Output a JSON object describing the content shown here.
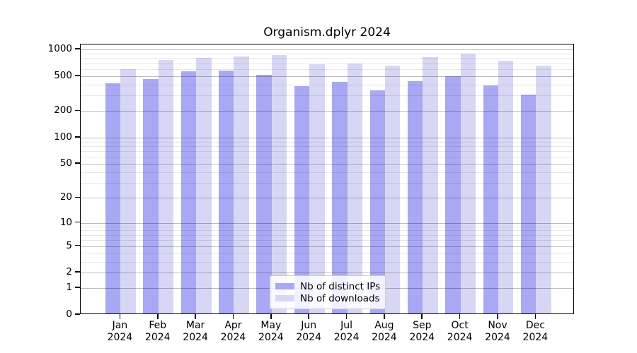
{
  "chart_data": {
    "type": "bar",
    "title": "Organism.dplyr 2024",
    "categories": [
      "Jan 2024",
      "Feb 2024",
      "Mar 2024",
      "Apr 2024",
      "May 2024",
      "Jun 2024",
      "Jul 2024",
      "Aug 2024",
      "Sep 2024",
      "Oct 2024",
      "Nov 2024",
      "Dec 2024"
    ],
    "category_month": [
      "Jan",
      "Feb",
      "Mar",
      "Apr",
      "May",
      "Jun",
      "Jul",
      "Aug",
      "Sep",
      "Oct",
      "Nov",
      "Dec"
    ],
    "category_year": "2024",
    "series": [
      {
        "name": "Nb of distinct IPs",
        "color": "#a8a8f4",
        "values": [
          400,
          445,
          545,
          560,
          495,
          370,
          415,
          335,
          420,
          480,
          375,
          300
        ]
      },
      {
        "name": "Nb of downloads",
        "color": "#d7d7f5",
        "values": [
          580,
          735,
          780,
          810,
          830,
          655,
          670,
          630,
          790,
          865,
          720,
          630
        ]
      }
    ],
    "yscale": "log1p",
    "ylim": [
      0,
      1140
    ],
    "yticks": [
      0,
      1,
      2,
      5,
      10,
      20,
      50,
      100,
      200,
      500,
      1000
    ],
    "ytick_labels": [
      "0",
      "1",
      "2",
      "5",
      "10",
      "20",
      "50",
      "100",
      "200",
      "500",
      "1000"
    ],
    "xlabel": "",
    "ylabel": "",
    "grid": true,
    "grid_over_bars": true,
    "legend_position": "inside lower center",
    "legend_border_color": "#cccccc"
  }
}
